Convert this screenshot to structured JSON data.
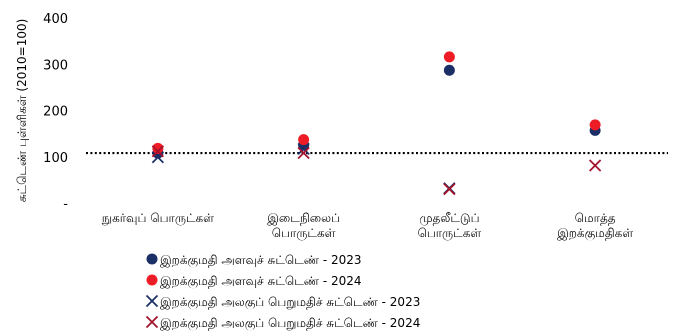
{
  "chart_data": {
    "type": "scatter",
    "ylabel": "சுட்டெண் புள்ளிகள் (2010=100)",
    "ylim": [
      0,
      400
    ],
    "yticks": [
      {
        "value": 0,
        "label": "-"
      },
      {
        "value": 100,
        "label": "100"
      },
      {
        "value": 200,
        "label": "200"
      },
      {
        "value": 300,
        "label": "300"
      },
      {
        "value": 400,
        "label": "400"
      }
    ],
    "reference_line": 108,
    "grid": false,
    "categories": [
      [
        "நுகர்வுப் பொருட்கள்"
      ],
      [
        "இடைநிலைப்",
        "பொருட்கள்"
      ],
      [
        "முதலீட்டுப்",
        "பொருட்கள்"
      ],
      [
        "மொத்த",
        "இறக்குமதிகள்"
      ]
    ],
    "series": [
      {
        "name": "இறக்குமதி அளவுச் சுட்டெண் - 2023",
        "marker": "circle",
        "color": "#1b2f66",
        "values": [
          108,
          125,
          287,
          157
        ]
      },
      {
        "name": "இறக்குமதி அளவுச் சுட்டெண் - 2024",
        "marker": "circle",
        "color": "#ee1c24",
        "values": [
          118,
          137,
          316,
          169
        ]
      },
      {
        "name": "இறக்குமதி அலகுப் பெறுமதிச் சுட்டெண் - 2023",
        "marker": "x",
        "color": "#1b2f66",
        "values": [
          99,
          117,
          32,
          null
        ]
      },
      {
        "name": "இறக்குமதி அலகுப் பெறுமதிச் சுட்டெண் - 2024",
        "marker": "x",
        "color": "#a3122c",
        "values": [
          112,
          108,
          30,
          81
        ]
      }
    ],
    "legend_position": "bottom"
  }
}
